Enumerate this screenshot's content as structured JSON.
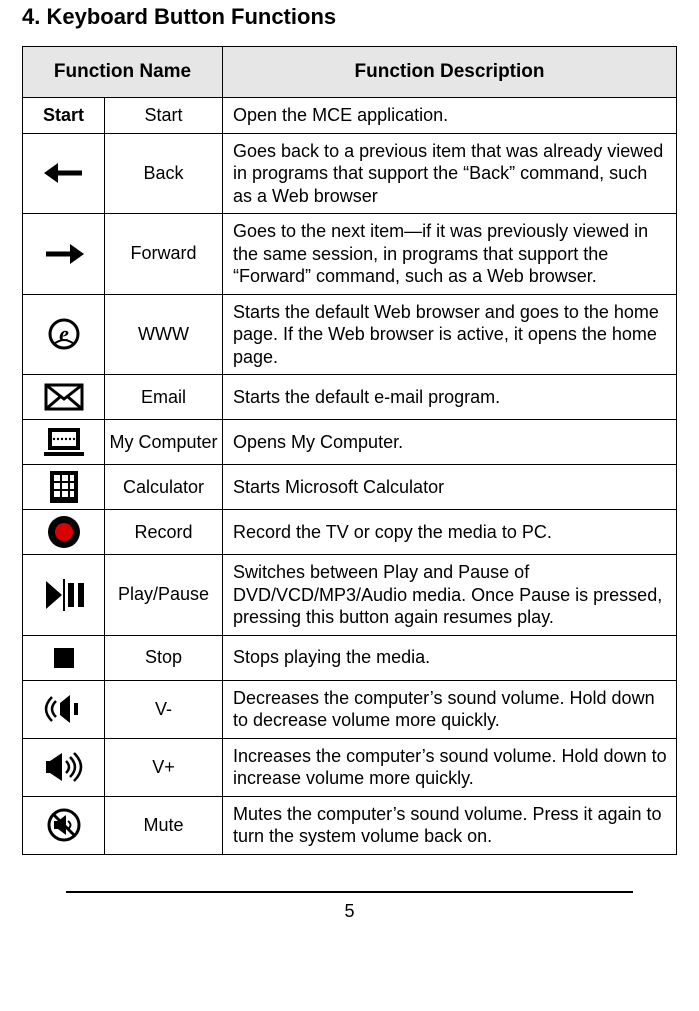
{
  "section_title": "4. Keyboard Button Functions",
  "header_name": "Function Name",
  "header_desc": "Function Description",
  "page_number": "5",
  "rows": [
    {
      "icon_text": "Start",
      "name": "Start",
      "desc": "Open the MCE application."
    },
    {
      "icon": "back",
      "name": "Back",
      "desc": "Goes back to a previous item that was already viewed in programs that support the “Back” command, such as a Web browser"
    },
    {
      "icon": "forward",
      "name": "Forward",
      "desc": "Goes to the next item—if it was previously viewed in the same session, in programs that support the “Forward” command, such as a Web browser."
    },
    {
      "icon": "www",
      "name": "WWW",
      "desc": "Starts the default Web browser and goes to the home page. If the Web browser is active, it opens the home page."
    },
    {
      "icon": "email",
      "name": "Email",
      "desc": "Starts the default e-mail program."
    },
    {
      "icon": "mycomputer",
      "name": "My Computer",
      "desc": "Opens My Computer."
    },
    {
      "icon": "calculator",
      "name": "Calculator",
      "desc": "Starts Microsoft Calculator"
    },
    {
      "icon": "record",
      "name": "Record",
      "desc": "Record the TV or copy the media to PC."
    },
    {
      "icon": "playpause",
      "name": "Play/Pause",
      "desc": "Switches between Play and Pause of DVD/VCD/MP3/Audio media. Once Pause is pressed, pressing this button again resumes play."
    },
    {
      "icon": "stop",
      "name": "Stop",
      "desc": "Stops playing the media."
    },
    {
      "icon": "voldown",
      "name": "V-",
      "desc": "Decreases the computer’s sound volume. Hold down to decrease volume more quickly."
    },
    {
      "icon": "volup",
      "name": "V+",
      "desc": "Increases the computer’s sound volume. Hold down to increase volume more quickly."
    },
    {
      "icon": "mute",
      "name": "Mute",
      "desc": "Mutes the computer’s sound volume. Press it again to turn the system volume back on."
    }
  ],
  "icons": {
    "back": "back-arrow-icon",
    "forward": "forward-arrow-icon",
    "www": "www-e-icon",
    "email": "envelope-icon",
    "mycomputer": "laptop-icon",
    "calculator": "calculator-grid-icon",
    "record": "record-circle-icon",
    "playpause": "play-pause-icon",
    "stop": "stop-square-icon",
    "voldown": "volume-down-icon",
    "volup": "volume-up-icon",
    "mute": "mute-icon"
  },
  "colors": {
    "header_bg": "#e6e6e6",
    "border": "#000000",
    "icon_fg": "#000000",
    "record_inner": "#d80000",
    "background": "#ffffff"
  },
  "typography": {
    "title_size_pt": 16,
    "body_size_pt": 13,
    "font_family": "Arial"
  }
}
